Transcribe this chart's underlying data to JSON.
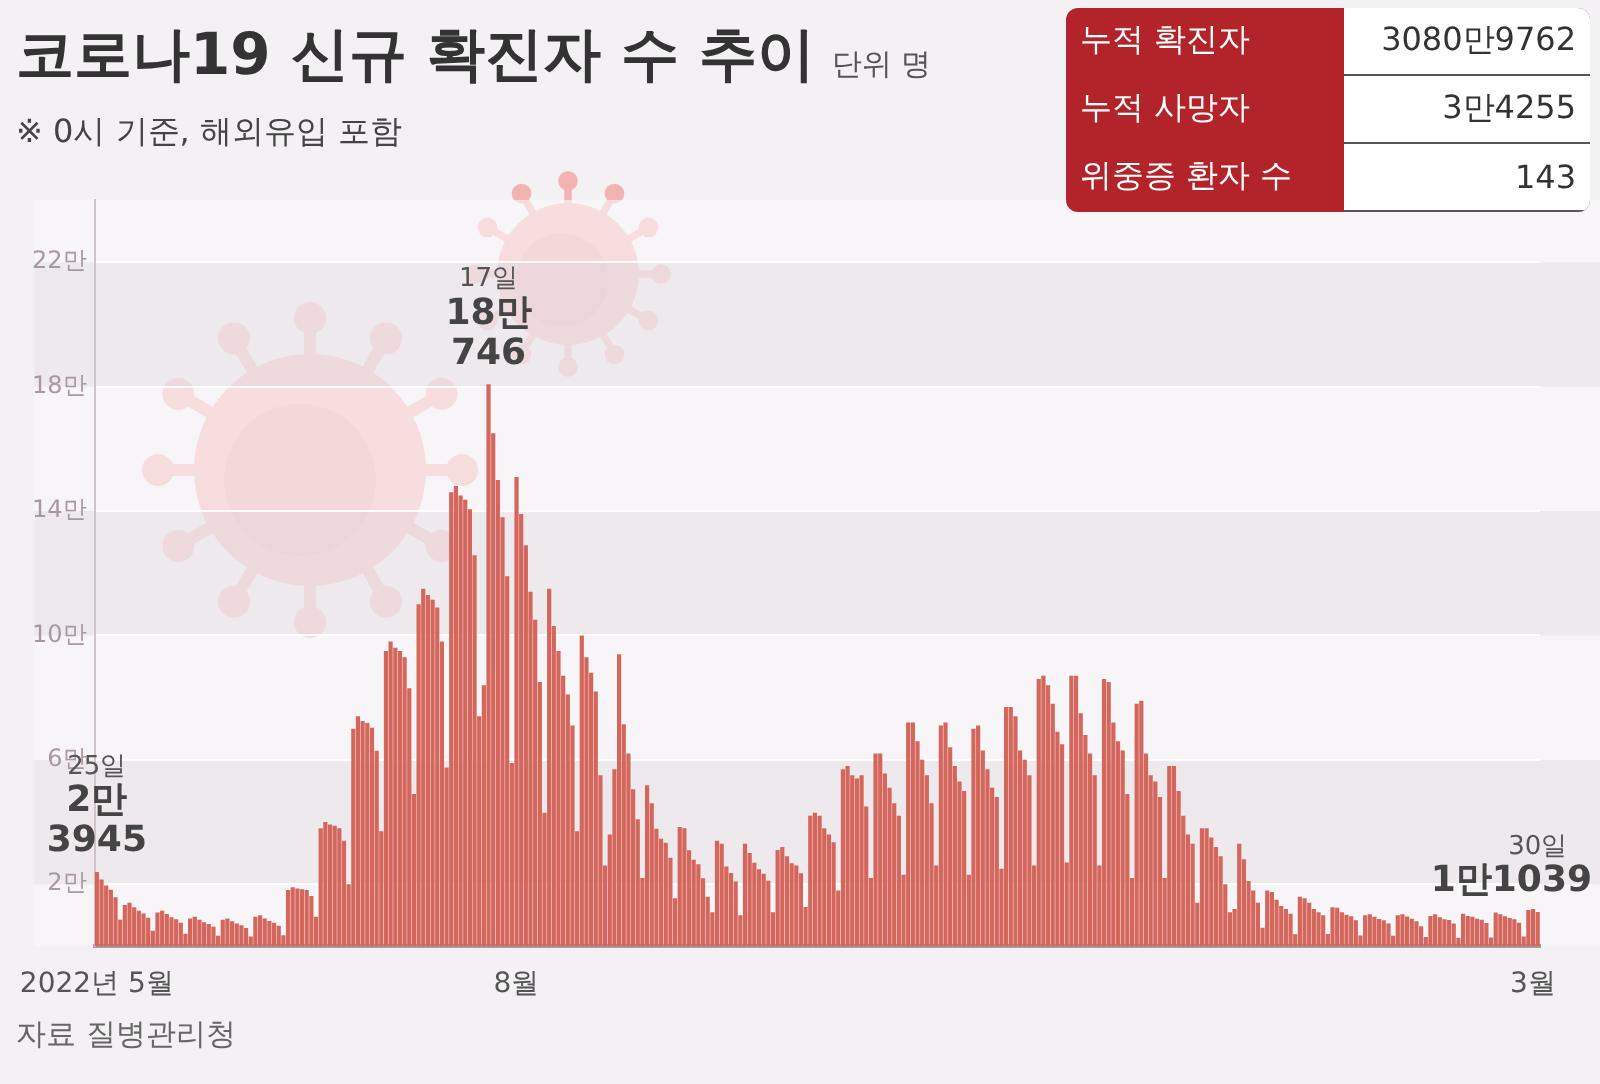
{
  "chart_data": {
    "type": "bar",
    "title": "코로나19 신규 확진자 수 추이",
    "subtitle": "※ 0시 기준, 해외유입 포함",
    "ylabel": "단위 명",
    "annotations": [
      "누적 확진자",
      "3080만9762",
      "누적 사망자",
      "3만4255",
      "위중증 환자 수",
      "143",
      "자료 질병관리청"
    ],
    "color": "#d4665c",
    "ylim": [
      0,
      24
    ],
    "yticks": [
      {
        "value": 2,
        "label": "2만"
      },
      {
        "value": 6,
        "label": "6만"
      },
      {
        "value": 10,
        "label": "10만"
      },
      {
        "value": 14,
        "label": "14만"
      },
      {
        "value": 18,
        "label": "18만"
      },
      {
        "value": 22,
        "label": "22만"
      }
    ],
    "grid": "y",
    "categories": [
      "2022년 5월",
      null,
      null,
      null,
      null,
      null,
      null,
      null,
      null,
      null,
      null,
      null,
      null,
      null,
      null,
      null,
      null,
      null,
      null,
      null,
      null,
      null,
      null,
      null,
      null,
      null,
      null,
      null,
      null,
      null,
      null,
      null,
      null,
      null,
      null,
      null,
      null,
      null,
      null,
      null,
      null,
      null,
      null,
      null,
      null,
      null,
      null,
      null,
      null,
      null,
      null,
      null,
      null,
      null,
      null,
      null,
      null,
      null,
      null,
      null,
      null,
      null,
      null,
      null,
      null,
      null,
      null,
      null,
      null,
      null,
      null,
      null,
      null,
      null,
      null,
      null,
      null,
      null,
      null,
      null,
      null,
      null,
      null,
      null,
      null,
      null,
      null,
      null,
      null,
      null,
      "8월",
      null,
      null,
      null,
      null,
      null,
      null,
      null,
      null,
      null,
      null,
      null,
      null,
      null,
      null,
      null,
      null,
      null,
      null,
      null,
      null,
      null,
      null,
      null,
      null,
      null,
      null,
      null,
      null,
      null,
      null,
      null,
      null,
      null,
      null,
      null,
      null,
      null,
      null,
      null,
      null,
      null,
      null,
      null,
      null,
      null,
      null,
      null,
      null,
      null,
      null,
      null,
      null,
      null,
      null,
      null,
      null,
      null,
      null,
      null,
      null,
      null,
      null,
      null,
      null,
      null,
      null,
      null,
      null,
      null,
      null,
      null,
      null,
      null,
      null,
      null,
      null,
      null,
      null,
      null,
      null,
      null,
      null,
      null,
      null,
      null,
      null,
      null,
      null,
      null,
      null,
      null,
      null,
      null,
      null,
      null,
      null,
      null,
      null,
      null,
      null,
      null,
      null,
      null,
      null,
      null,
      null,
      null,
      null,
      null,
      null,
      null,
      null,
      null,
      null,
      null,
      null,
      null,
      null,
      null,
      null,
      null,
      null,
      null,
      null,
      null,
      null,
      null,
      null,
      null,
      null,
      null,
      null,
      null,
      null,
      null,
      null,
      null,
      null,
      null,
      null,
      null,
      null,
      null,
      null,
      null,
      null,
      null,
      null,
      null,
      null,
      null,
      null,
      null,
      null,
      null,
      null,
      null,
      null,
      null,
      null,
      null,
      null,
      null,
      null,
      null,
      null,
      null,
      null,
      null,
      null,
      null,
      null,
      null,
      null,
      null,
      null,
      null,
      null,
      null,
      null,
      null,
      null,
      null,
      null,
      null,
      null,
      null,
      null,
      null,
      null,
      null,
      null,
      null,
      null,
      null,
      null,
      null,
      null,
      null,
      null,
      null,
      null,
      null,
      null,
      null,
      null,
      null,
      null,
      null,
      null,
      null,
      null,
      null,
      null,
      null,
      null,
      null,
      "3월",
      null
    ],
    "values": [
      2.3945,
      2.15,
      1.96,
      1.82,
      1.58,
      0.86,
      1.33,
      1.4,
      1.26,
      1.15,
      1.06,
      0.92,
      0.5,
      1.09,
      1.15,
      1.04,
      0.94,
      0.87,
      0.76,
      0.41,
      0.9,
      0.95,
      0.86,
      0.78,
      0.72,
      0.63,
      0.34,
      0.86,
      0.9,
      0.81,
      0.74,
      0.68,
      0.59,
      0.32,
      0.95,
      1.0,
      0.9,
      0.82,
      0.76,
      0.66,
      0.36,
      1.81,
      1.9,
      1.86,
      1.84,
      1.81,
      1.62,
      0.95,
      3.8,
      4.0,
      3.92,
      3.88,
      3.8,
      3.4,
      2.0,
      7.0,
      7.4,
      7.25,
      7.18,
      7.03,
      6.29,
      3.7,
      9.5,
      9.8,
      9.6,
      9.5,
      9.3,
      8.3,
      4.9,
      11.0,
      11.5,
      11.3,
      11.15,
      10.9,
      9.8,
      5.75,
      14.6,
      14.8,
      14.5,
      14.36,
      14.06,
      12.58,
      7.4,
      8.4,
      18.0746,
      16.5,
      15.0,
      13.8,
      11.9,
      5.9,
      15.09,
      13.9,
      12.9,
      11.4,
      10.5,
      8.5,
      4.3,
      11.5,
      10.3,
      9.5,
      8.7,
      8.1,
      7.1,
      3.7,
      10.0,
      9.3,
      8.8,
      8.2,
      5.5,
      2.6,
      3.6,
      5.7,
      9.39,
      7.14,
      6.2,
      5.05,
      4.09,
      2.2,
      5.18,
      4.6,
      3.78,
      3.46,
      3.33,
      2.85,
      1.55,
      3.84,
      3.8,
      3.09,
      2.79,
      2.64,
      2.19,
      1.6,
      1.1,
      3.4,
      3.3,
      2.57,
      2.36,
      2.09,
      1.0,
      3.3,
      3.0,
      2.69,
      2.48,
      2.34,
      2.11,
      1.1,
      3.1,
      3.2,
      2.9,
      2.67,
      2.6,
      2.35,
      1.27,
      4.2,
      4.3,
      4.2,
      3.8,
      3.6,
      3.35,
      1.8,
      5.7,
      5.8,
      5.5,
      5.4,
      5.5,
      4.5,
      2.2,
      6.2,
      6.2,
      5.56,
      5.1,
      4.6,
      4.2,
      2.3,
      7.2,
      7.2,
      6.6,
      6.0,
      5.5,
      4.6,
      2.6,
      7.1,
      7.2,
      6.4,
      5.8,
      5.3,
      5.0,
      2.3,
      7.0,
      7.1,
      6.3,
      5.7,
      5.1,
      4.8,
      2.5,
      7.7,
      7.7,
      7.4,
      6.3,
      6.0,
      5.5,
      2.6,
      8.6,
      8.7,
      8.4,
      7.8,
      6.9,
      6.5,
      2.7,
      8.7,
      8.7,
      7.5,
      6.8,
      6.2,
      5.5,
      2.6,
      8.6,
      8.5,
      7.2,
      6.6,
      6.3,
      4.9,
      2.2,
      7.8,
      7.9,
      6.2,
      5.5,
      5.3,
      4.8,
      2.2,
      5.8,
      5.8,
      5.0,
      4.2,
      3.6,
      3.3,
      1.4,
      3.8,
      3.8,
      3.5,
      3.2,
      2.9,
      2.0,
      1.1,
      1.2,
      3.3,
      2.8,
      2.1,
      1.8,
      1.4,
      0.6,
      1.8,
      1.75,
      1.5,
      1.3,
      1.2,
      1.05,
      0.39,
      1.6,
      1.55,
      1.4,
      1.2,
      1.1,
      1.0,
      0.4,
      1.26,
      1.24,
      1.1,
      1.02,
      0.97,
      0.84,
      0.35,
      1.0,
      1.03,
      0.95,
      0.88,
      0.84,
      0.74,
      0.34,
      1.0,
      1.03,
      0.96,
      0.89,
      0.81,
      0.65,
      0.3,
      0.98,
      1.03,
      0.94,
      0.87,
      0.85,
      0.74,
      0.28,
      1.05,
      0.98,
      0.95,
      0.89,
      0.86,
      0.75,
      0.29,
      1.09,
      1.03,
      0.97,
      0.91,
      0.87,
      0.76,
      0.32,
      1.17,
      1.2,
      1.1039
    ],
    "value_labels": [
      "25일\n2만\n3945",
      null,
      null,
      null,
      null,
      null,
      null,
      null,
      null,
      null,
      null,
      null,
      null,
      null,
      null,
      null,
      null,
      null,
      null,
      null,
      null,
      null,
      null,
      null,
      null,
      null,
      null,
      null,
      null,
      null,
      null,
      null,
      null,
      null,
      null,
      null,
      null,
      null,
      null,
      null,
      null,
      null,
      null,
      null,
      null,
      null,
      null,
      null,
      null,
      null,
      null,
      null,
      null,
      null,
      null,
      null,
      null,
      null,
      null,
      null,
      null,
      null,
      null,
      null,
      null,
      null,
      null,
      null,
      null,
      null,
      null,
      null,
      null,
      null,
      null,
      null,
      null,
      null,
      null,
      null,
      null,
      null,
      null,
      null,
      "17일\n18만\n746",
      null,
      null,
      null,
      null,
      null,
      null,
      null,
      null,
      null,
      null,
      null,
      null,
      null,
      null,
      null,
      null,
      null,
      null,
      null,
      null,
      null,
      null,
      null,
      null,
      null,
      null,
      null,
      null,
      null,
      null,
      null,
      null,
      null,
      null,
      null,
      null,
      null,
      null,
      null,
      null,
      null,
      null,
      null,
      null,
      null,
      null,
      null,
      null,
      null,
      null,
      null,
      null,
      null,
      null,
      null,
      null,
      null,
      null,
      null,
      null,
      null,
      null,
      null,
      null,
      null,
      null,
      null,
      null,
      null,
      null,
      null,
      null,
      null,
      null,
      null,
      null,
      null,
      null,
      null,
      null,
      null,
      null,
      null,
      null,
      null,
      null,
      null,
      null,
      null,
      null,
      null,
      null,
      null,
      null,
      null,
      null,
      null,
      null,
      null,
      null,
      null,
      null,
      null,
      null,
      null,
      null,
      null,
      null,
      null,
      null,
      null,
      null,
      null,
      null,
      null,
      null,
      null,
      null,
      null,
      null,
      null,
      null,
      null,
      null,
      null,
      null,
      null,
      null,
      null,
      null,
      null,
      null,
      null,
      null,
      null,
      null,
      null,
      null,
      null,
      null,
      null,
      null,
      null,
      null,
      null,
      null,
      null,
      null,
      null,
      null,
      null,
      null,
      null,
      null,
      null,
      null,
      null,
      null,
      null,
      null,
      null,
      null,
      null,
      null,
      null,
      null,
      null,
      null,
      null,
      null,
      null,
      null,
      null,
      null,
      null,
      null,
      null,
      null,
      null,
      null,
      null,
      null,
      null,
      null,
      null,
      null,
      null,
      null,
      null,
      null,
      null,
      null,
      null,
      null,
      null,
      null,
      null,
      null,
      null,
      null,
      null,
      null,
      null,
      null,
      null,
      null,
      null,
      null,
      null,
      null,
      null,
      null,
      null,
      null,
      null,
      null,
      null,
      null,
      null,
      null,
      null,
      null,
      null,
      null,
      "30일\n1만1039"
    ]
  }
}
